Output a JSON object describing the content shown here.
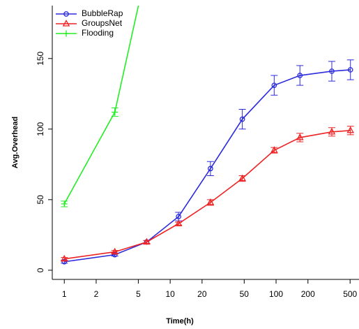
{
  "chart_data": {
    "type": "line",
    "x_label": "Time(h)",
    "y_label": "Avg.Overhead",
    "x": [
      1,
      3,
      6,
      12,
      24,
      48,
      96,
      168,
      336,
      504
    ],
    "x_log": true,
    "xlim": [
      0.77,
      607
    ],
    "xticks": [
      1,
      2,
      5,
      10,
      20,
      50,
      100,
      200,
      500
    ],
    "ylim": [
      -6.5,
      187.5
    ],
    "yticks": [
      0,
      50,
      100,
      150
    ],
    "legend": "top-left",
    "series": [
      {
        "name": "BubbleRap",
        "color": "#2b2bdd",
        "marker": "circle",
        "values": [
          6,
          11,
          20,
          38,
          72,
          107,
          131,
          138,
          141,
          142
        ],
        "errors": [
          1,
          1,
          1,
          3,
          5,
          7,
          7,
          7,
          7,
          7
        ]
      },
      {
        "name": "GroupsNet",
        "color": "#ee2222",
        "marker": "triangle",
        "values": [
          8,
          13,
          20,
          33,
          48,
          65,
          85,
          94,
          98,
          99
        ],
        "errors": [
          1,
          1,
          1,
          1,
          2,
          2,
          2,
          3,
          3,
          3
        ]
      },
      {
        "name": "Flooding",
        "color": "#22ee22",
        "marker": "plus",
        "values": [
          47,
          112,
          214,
          null,
          null,
          null,
          null,
          null,
          null,
          null
        ],
        "errors": [
          2,
          3,
          null,
          null,
          null,
          null,
          null,
          null,
          null,
          null
        ]
      }
    ]
  }
}
